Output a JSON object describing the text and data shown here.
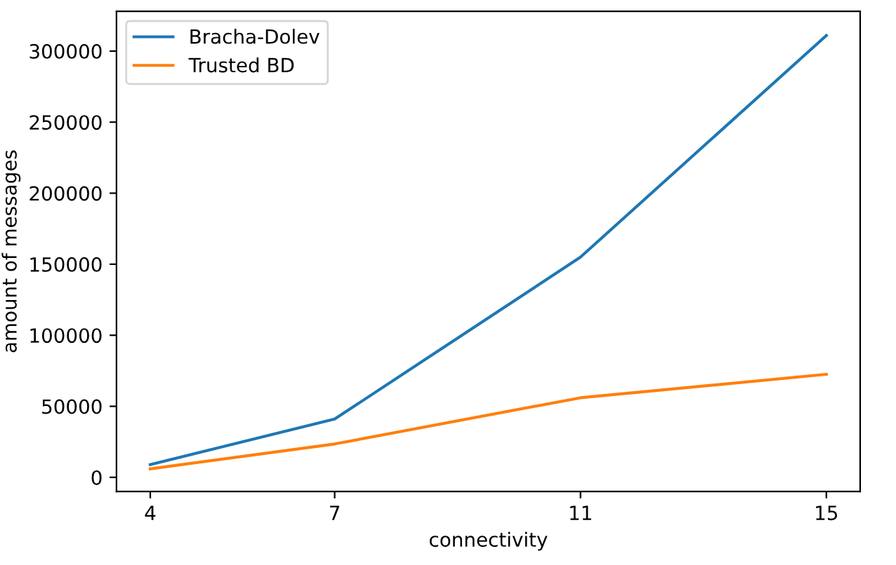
{
  "chart_data": {
    "type": "line",
    "xlabel": "connectivity",
    "ylabel": "amount of messages",
    "x": [
      4,
      7,
      11,
      15
    ],
    "series": [
      {
        "name": "Bracha-Dolev",
        "color": "#1f77b4",
        "values": [
          9000,
          41000,
          155000,
          311000
        ]
      },
      {
        "name": "Trusted BD",
        "color": "#ff7f0e",
        "values": [
          6000,
          23500,
          56000,
          72500
        ]
      }
    ],
    "xlim": [
      3.45,
      15.55
    ],
    "xticks": [
      4,
      7,
      11,
      15
    ],
    "ylim": [
      -10000,
      328000
    ],
    "yticks": [
      0,
      50000,
      100000,
      150000,
      200000,
      250000,
      300000
    ],
    "legend": "top left",
    "grid": false,
    "marker": "none",
    "line_style": "solid"
  }
}
